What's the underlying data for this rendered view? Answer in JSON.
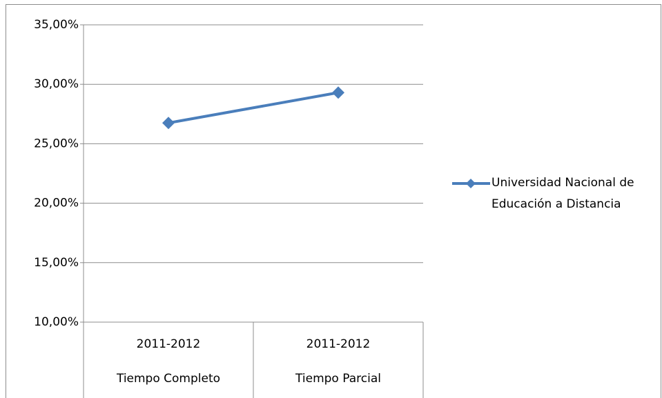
{
  "chart_data": {
    "type": "line",
    "categories": [
      [
        "2011-2012",
        "Tiempo Completo"
      ],
      [
        "2011-2012",
        "Tiempo Parcial"
      ]
    ],
    "series": [
      {
        "name": "Universidad Nacional de Educación a Distancia",
        "color": "#4a7ebb",
        "values": [
          26.75,
          29.3
        ]
      }
    ],
    "ylim": [
      10,
      35
    ],
    "yticks": [
      {
        "value": 10,
        "label": "10,00%"
      },
      {
        "value": 15,
        "label": "15,00%"
      },
      {
        "value": 20,
        "label": "20,00%"
      },
      {
        "value": 25,
        "label": "25,00%"
      },
      {
        "value": 30,
        "label": "30,00%"
      },
      {
        "value": 35,
        "label": "35,00%"
      }
    ],
    "grid": true,
    "legend": "right"
  }
}
